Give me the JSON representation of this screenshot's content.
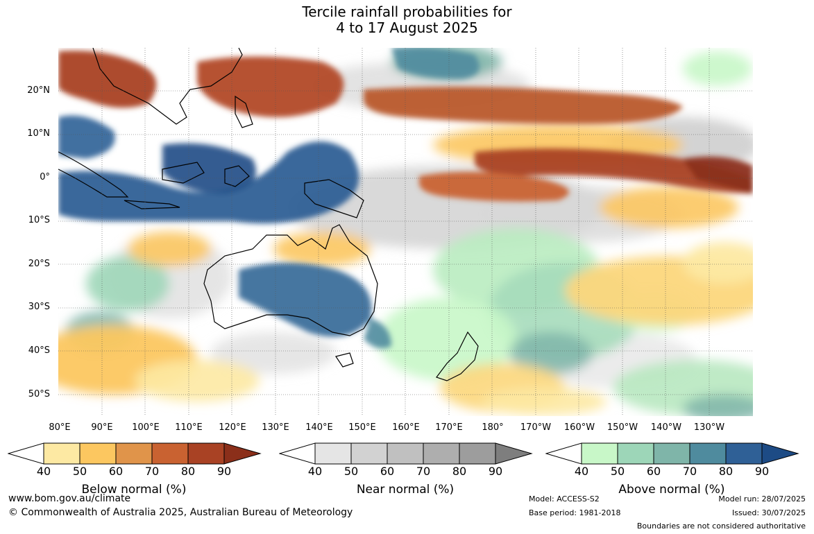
{
  "title": {
    "line1": "Tercile rainfall probabilities for",
    "line2": "4 to 17 August 2025"
  },
  "latitude_labels": [
    "20°N",
    "10°N",
    "0°",
    "10°S",
    "20°S",
    "30°S",
    "40°S",
    "50°S"
  ],
  "longitude_labels": [
    "80°E",
    "90°E",
    "100°E",
    "110°E",
    "120°E",
    "130°E",
    "140°E",
    "150°E",
    "160°E",
    "170°E",
    "180°",
    "170°W",
    "160°W",
    "150°W",
    "140°W",
    "130°W"
  ],
  "colorbars": [
    {
      "label": "Below normal (%)",
      "ticks": [
        "40",
        "50",
        "60",
        "70",
        "80",
        "90"
      ],
      "colors": [
        "#ffffff",
        "#fde9a3",
        "#fcc760",
        "#e0944a",
        "#c96231",
        "#a94224",
        "#8b2f1a"
      ]
    },
    {
      "label": "Near normal (%)",
      "ticks": [
        "40",
        "50",
        "60",
        "70",
        "80",
        "90"
      ],
      "colors": [
        "#ffffff",
        "#e5e5e5",
        "#d2d2d2",
        "#c0c0c0",
        "#aeaeae",
        "#9d9d9d",
        "#7e7e7e"
      ]
    },
    {
      "label": "Above normal (%)",
      "ticks": [
        "40",
        "50",
        "60",
        "70",
        "80",
        "90"
      ],
      "colors": [
        "#ffffff",
        "#c8f7c8",
        "#9dd6b8",
        "#7fb5a9",
        "#4f8b9e",
        "#2f6096",
        "#1d4b85"
      ]
    }
  ],
  "footer": {
    "website": "www.bom.gov.au/climate",
    "copyright": "© Commonwealth of Australia 2025, Australian Bureau of Meteorology",
    "model": "Model: ACCESS-S2",
    "base_period": "Base period: 1981-2018",
    "model_run": "Model run: 28/07/2025",
    "issued": "Issued: 30/07/2025",
    "disclaimer": "Boundaries are not considered authoritative"
  }
}
